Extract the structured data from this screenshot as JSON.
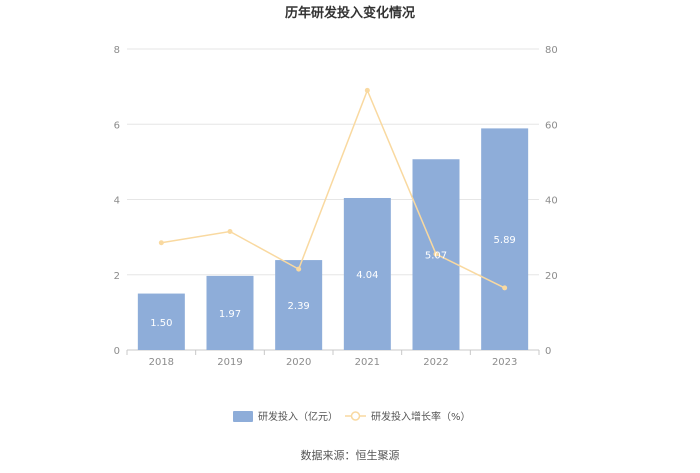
{
  "chart_data": {
    "type": "bar",
    "title": "历年研发投入变化情况",
    "categories": [
      "2018",
      "2019",
      "2020",
      "2021",
      "2022",
      "2023"
    ],
    "series": [
      {
        "name": "研发投入（亿元）",
        "type": "bar",
        "axis": "left",
        "values": [
          1.5,
          1.97,
          2.39,
          4.04,
          5.07,
          5.89
        ],
        "labels": [
          "1.50",
          "1.97",
          "2.39",
          "4.04",
          "5.07",
          "5.89"
        ],
        "color": "#8eadd9"
      },
      {
        "name": "研发投入增长率（%）",
        "type": "line",
        "axis": "right",
        "values": [
          28.5,
          31.5,
          21.5,
          69.0,
          25.5,
          16.5
        ],
        "color": "#f9d9a0"
      }
    ],
    "y_left": {
      "min": 0,
      "max": 8,
      "ticks": [
        0,
        2,
        4,
        6,
        8
      ]
    },
    "y_right": {
      "min": 0,
      "max": 80,
      "ticks": [
        0,
        20,
        40,
        60,
        80
      ]
    },
    "grid": true,
    "legend_position": "bottom"
  },
  "source_text": "数据来源：恒生聚源"
}
